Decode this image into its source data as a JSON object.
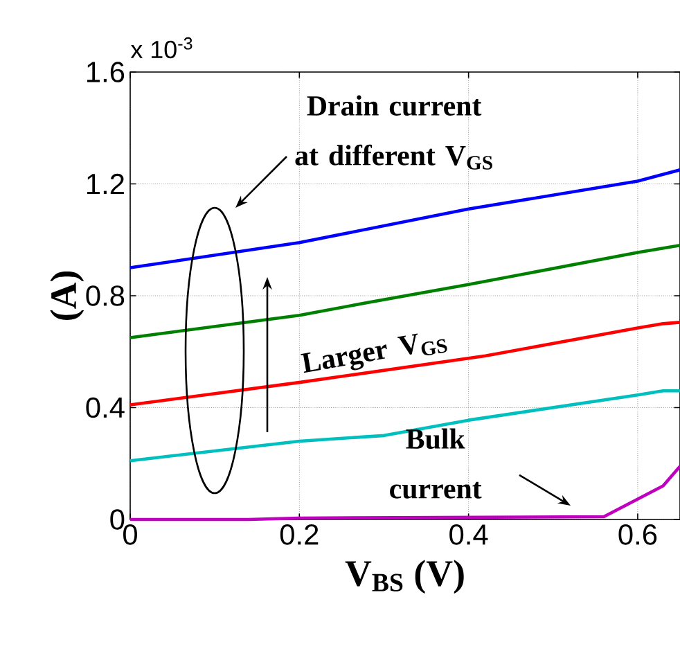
{
  "chart_data": {
    "type": "line",
    "xlabel": "V$_{BS}$ (V)",
    "ylabel": "(A)",
    "series": [
      {
        "color": "#0000ff",
        "x": [
          0,
          0.2,
          0.4,
          0.6,
          0.65
        ],
        "values": [
          0.9,
          0.99,
          1.11,
          1.21,
          1.25
        ]
      },
      {
        "color": "#008000",
        "x": [
          0,
          0.2,
          0.28,
          0.4,
          0.6,
          0.65
        ],
        "values": [
          0.65,
          0.73,
          0.775,
          0.84,
          0.955,
          0.98
        ]
      },
      {
        "color": "#ff0000",
        "x": [
          0,
          0.2,
          0.42,
          0.6,
          0.63,
          0.65
        ],
        "values": [
          0.41,
          0.49,
          0.585,
          0.685,
          0.7,
          0.705
        ]
      },
      {
        "color": "#00bfbf",
        "x": [
          0,
          0.2,
          0.3,
          0.4,
          0.6,
          0.63,
          0.65
        ],
        "values": [
          0.21,
          0.28,
          0.3,
          0.355,
          0.445,
          0.46,
          0.46
        ]
      },
      {
        "color": "#bf00bf",
        "x": [
          0,
          0.14,
          0.2,
          0.56,
          0.63,
          0.65
        ],
        "values": [
          0,
          0,
          0.005,
          0.01,
          0.12,
          0.19
        ]
      }
    ],
    "xlim": [
      0,
      0.65
    ],
    "ylim": [
      0,
      1.6
    ],
    "xticks": [
      0,
      0.2,
      0.4,
      0.6
    ],
    "yticks": [
      0,
      0.4,
      0.8,
      1.2,
      1.6
    ],
    "grid": true,
    "marker": "none",
    "line_style": "solid",
    "annotations": [
      "x 10$^{-3}$",
      "Drain current at different V$_{GS}$",
      "Larger V$_{GS}$",
      "Bulk current"
    ]
  }
}
